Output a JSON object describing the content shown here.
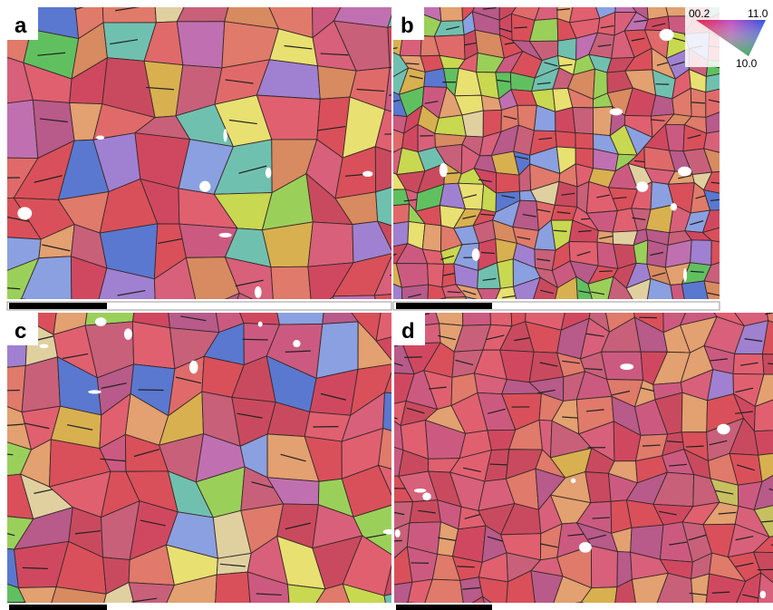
{
  "panels": [
    {
      "label": "a"
    },
    {
      "label": "b"
    },
    {
      "label": "c"
    },
    {
      "label": "d"
    }
  ],
  "legend": {
    "top_left": "00.2",
    "top_right": "11.0",
    "bottom": "10.0"
  }
}
